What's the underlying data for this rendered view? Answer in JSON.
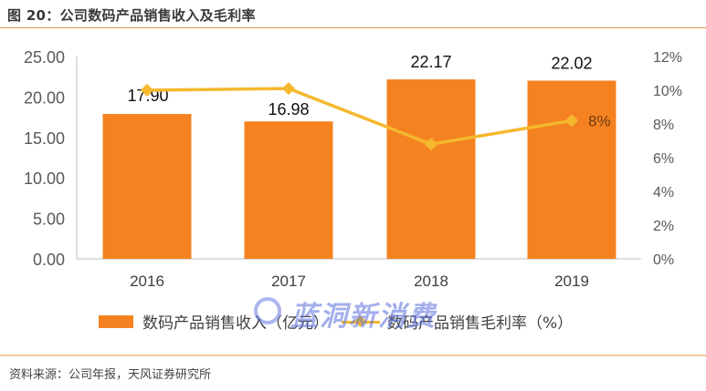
{
  "header": {
    "title": "图 20：公司数码产品销售收入及毛利率"
  },
  "footer": {
    "source": "资料来源：公司年报，天风证券研究所"
  },
  "watermark": {
    "text": "蓝洞新消费"
  },
  "legend": {
    "bar_label": "数码产品销售收入（亿元）",
    "line_label": "数码产品销售毛利率（%）"
  },
  "colors": {
    "bar": "#f58220",
    "line": "#f5b82e",
    "axis": "#bfbfbf",
    "tick_text": "#595959"
  },
  "chart_data": {
    "type": "bar+line",
    "title": "公司数码产品销售收入及毛利率",
    "categories": [
      "2016",
      "2017",
      "2018",
      "2019"
    ],
    "series": [
      {
        "name": "数码产品销售收入（亿元）",
        "type": "bar",
        "axis": "left",
        "values": [
          17.9,
          16.98,
          22.17,
          22.02
        ],
        "data_labels": [
          "17.90",
          "16.98",
          "22.17",
          "22.02"
        ]
      },
      {
        "name": "数码产品销售毛利率（%）",
        "type": "line",
        "axis": "right",
        "values": [
          10.0,
          10.1,
          6.8,
          8.2
        ],
        "data_labels": [
          "",
          "",
          "",
          "8%"
        ]
      }
    ],
    "left_axis": {
      "ylim": [
        0,
        25
      ],
      "ticks": [
        "0.00",
        "5.00",
        "10.00",
        "15.00",
        "20.00",
        "25.00"
      ]
    },
    "right_axis": {
      "ylim": [
        0,
        12
      ],
      "ticks": [
        "0%",
        "2%",
        "4%",
        "6%",
        "8%",
        "10%",
        "12%"
      ]
    },
    "grid": false,
    "legend_position": "bottom"
  }
}
